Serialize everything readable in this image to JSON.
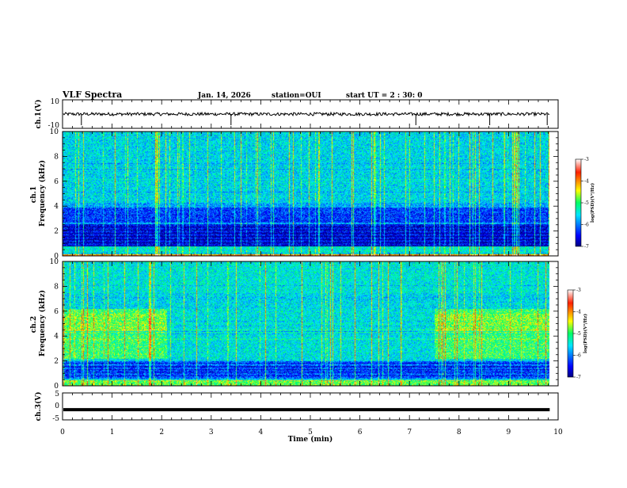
{
  "header": {
    "title": "VLF Spectra",
    "date": "Jan. 14, 2026",
    "station": "station=OUI",
    "start_ut": "start UT =  2 : 30: 0"
  },
  "chart_data": [
    {
      "type": "line",
      "panel": "ch1-waveform",
      "ylabel": "ch.1(V)",
      "ylim": [
        -10,
        10
      ],
      "yticks": [
        "10",
        "-10"
      ],
      "xlim": [
        0,
        10
      ],
      "baseline": 0,
      "spikes_min": [
        0.38,
        3.4,
        7.13,
        8.62,
        9.78
      ]
    },
    {
      "type": "heatmap",
      "panel": "ch1-spectrogram",
      "ylabel": "ch.1\nFrequency (kHz)",
      "ylim": [
        0,
        10
      ],
      "yticks": [
        "0",
        "2",
        "4",
        "6",
        "8",
        "10"
      ],
      "xlim": [
        0,
        10
      ],
      "data_end_min": 9.83,
      "colorbar": {
        "label": "log(PSD)(V²/Hz)",
        "ticks": [
          "-3",
          "-4",
          "-5",
          "-6",
          "-7"
        ],
        "range": [
          -7,
          -3
        ]
      }
    },
    {
      "type": "heatmap",
      "panel": "ch2-spectrogram",
      "ylabel": "ch.2\nFrequency (kHz)",
      "ylim": [
        0,
        10
      ],
      "yticks": [
        "0",
        "2",
        "4",
        "6",
        "8",
        "10"
      ],
      "xlim": [
        0,
        10
      ],
      "data_end_min": 9.83,
      "enhanced_intervals_min": [
        [
          0,
          2.1
        ],
        [
          7.5,
          9.83
        ]
      ],
      "colorbar": {
        "label": "log(PSD)(V²/Hz)",
        "ticks": [
          "-3",
          "-4",
          "-5",
          "-6",
          "-7"
        ],
        "range": [
          -7,
          -3
        ]
      }
    },
    {
      "type": "line",
      "panel": "ch3-waveform",
      "ylabel": "ch.3(V)",
      "ylim": [
        -5,
        5
      ],
      "yticks": [
        "5",
        "0",
        "-5"
      ],
      "xlim": [
        0,
        10
      ],
      "baseline": -1.2,
      "xlabel": "Time (min)",
      "xticks": [
        "0",
        "1",
        "2",
        "3",
        "4",
        "5",
        "6",
        "7",
        "8",
        "9",
        "10"
      ]
    }
  ]
}
